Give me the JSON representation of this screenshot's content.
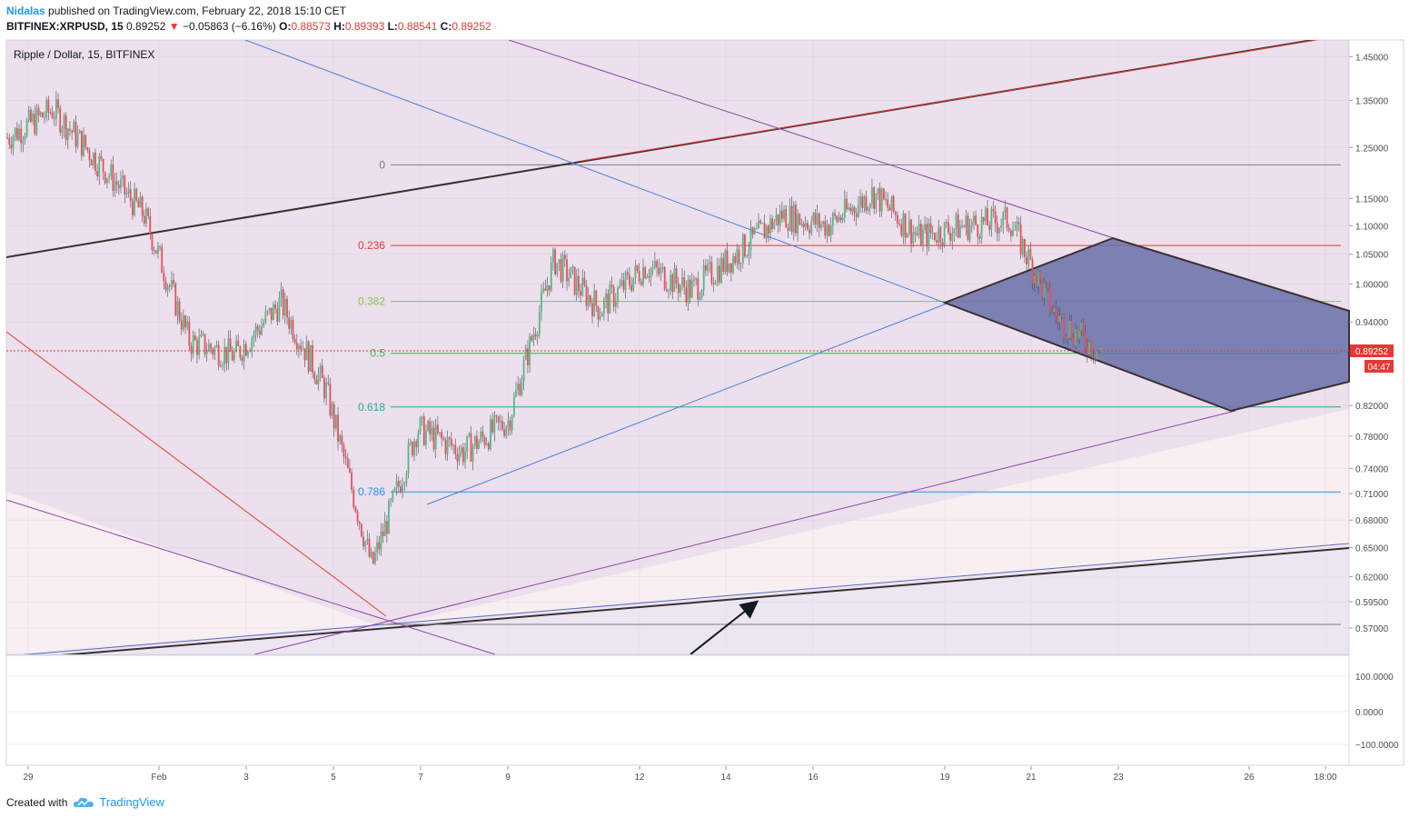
{
  "header": {
    "author": "Nidalas",
    "published_text": "published on TradingView.com, February 22, 2018 15:10 CET",
    "symbol": "BITFINEX:XRPUSD, 15",
    "last": "0.89252",
    "change": "−0.05863 (−6.16%)",
    "open_label": "O:",
    "open": "0.88573",
    "high_label": "H:",
    "high": "0.89393",
    "low_label": "L:",
    "low": "0.88541",
    "close_label": "C:",
    "close": "0.89252"
  },
  "pane_title": "Ripple / Dollar, 15, BITFINEX",
  "price_tag": "0.89252",
  "countdown_tag": "04:47",
  "footer": {
    "created_with": "Created with",
    "brand": "TradingView"
  },
  "colors": {
    "candle_up": "#53b987",
    "candle_down": "#eb4d5c",
    "pattern_fill": "#6a6fa8",
    "trend_line": "#3b2f33",
    "fib_0": "#787b86",
    "fib_236": "#e53935",
    "fib_382": "#8bc34a",
    "fib_5": "#4caf50",
    "fib_618": "#26a69a",
    "fib_786": "#2196f3"
  },
  "chart_data": {
    "type": "line",
    "title": "Ripple / Dollar, 15, BITFINEX",
    "xlabel": "",
    "ylabel": "",
    "x_tick_labels": [
      "29",
      "Feb",
      "3",
      "5",
      "7",
      "9",
      "12",
      "14",
      "16",
      "19",
      "21",
      "23",
      "26",
      "18:00"
    ],
    "y_tick_labels": [
      "1.45000",
      "1.35000",
      "1.25000",
      "1.15000",
      "1.10000",
      "1.05000",
      "1.00000",
      "0.94000",
      "0.82000",
      "0.78000",
      "0.74000",
      "0.71000",
      "0.68000",
      "0.65000",
      "0.62000",
      "0.59500",
      "0.57000"
    ],
    "ylim": [
      0.546,
      1.49
    ],
    "y_scale": "log",
    "grid": true,
    "series": [
      {
        "x": [
          "Jan 29",
          "Jan 30",
          "Jan 31",
          "Feb 1",
          "Feb 2",
          "Feb 3",
          "Feb 4",
          "Feb 5",
          "Feb 6",
          "Feb 7",
          "Feb 8",
          "Feb 9",
          "Feb 10",
          "Feb 11",
          "Feb 12",
          "Feb 13",
          "Feb 14",
          "Feb 15",
          "Feb 16",
          "Feb 17",
          "Feb 18",
          "Feb 19",
          "Feb 20",
          "Feb 21",
          "Feb 22"
        ],
        "values": [
          1.27,
          1.33,
          1.22,
          1.12,
          0.91,
          0.89,
          0.97,
          0.84,
          0.63,
          0.79,
          0.76,
          0.8,
          1.04,
          0.96,
          1.03,
          0.99,
          1.05,
          1.12,
          1.1,
          1.16,
          1.08,
          1.1,
          1.11,
          0.95,
          0.89252
        ]
      }
    ],
    "fibonacci": {
      "levels": [
        "0",
        "0.236",
        "0.382",
        "0.5",
        "0.618",
        "0.786"
      ],
      "prices": [
        1.215,
        1.065,
        0.972,
        0.893,
        0.818,
        0.712
      ]
    },
    "indicator_pane": {
      "y_tick_labels": [
        "100.0000",
        "0.0000",
        "−100.0000"
      ]
    }
  }
}
